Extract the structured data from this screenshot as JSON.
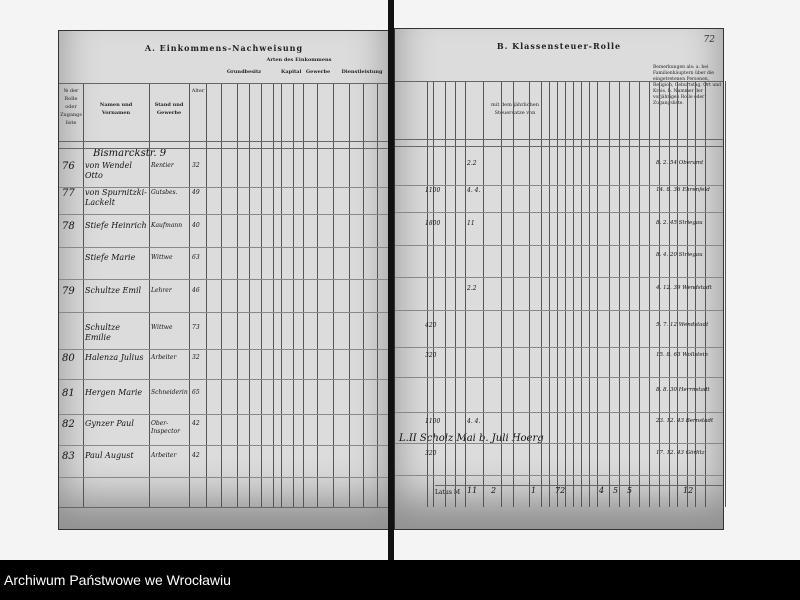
{
  "left_page": {
    "section_title": "A. Einkommens-Nachweisung",
    "group_title": "Arten des Einkommens",
    "subgroups": [
      "Grundbesitz",
      "Kapital",
      "Gewerbe",
      "Dienstleistung"
    ],
    "col_no": "№ der Rolle oder Zugangsliste",
    "col_name": "Namen und Vornamen",
    "col_stand": "Stand und Gewerbe",
    "col_age": "Alter"
  },
  "right_page": {
    "section_title": "B. Klassensteuer-Rolle",
    "page_number": "72",
    "col_remarks": "Bemerkungen als: a. bei Familienhäuptern über die eingetretenen Personen, Religion, Geburtstag, Ort und Kreis. b. Nummer der vorjährigen Rolle oder Zugangsliste.",
    "col_tax": "mit dem jährlichen Steuersatze von",
    "totals_label": "Latus M",
    "totals": [
      "11",
      "2",
      "1",
      "72",
      "4",
      "5",
      "5",
      "12"
    ],
    "note_line": "L.II Scholz Mai b. Juli Hoerg"
  },
  "street_heading": "Bismarckstr. 9",
  "rows": [
    {
      "no": "76",
      "name": "von Wendel Otto",
      "stand": "Rentier",
      "age": "32",
      "income": "",
      "class": "2.2",
      "remarks": "8. 2. 54 Oberamt"
    },
    {
      "no": "77",
      "name": "von Spurnitzki-Lackelt",
      "stand": "Gutsbes.",
      "age": "49",
      "income": "1100",
      "class": "4. 4.",
      "remarks": "14. 8. 36 Ehrenfeld"
    },
    {
      "no": "78",
      "name": "Stiefe Heinrich",
      "stand": "Kaufmann",
      "age": "40",
      "income": "1800",
      "class": "11",
      "remarks": "8. 2. 45 Striegau"
    },
    {
      "no": "",
      "name": "Stiefe Marie",
      "stand": "Wittwe",
      "age": "63",
      "income": "",
      "class": "",
      "remarks": "8. 4. 20 Striegau"
    },
    {
      "no": "79",
      "name": "Schultze Emil",
      "stand": "Lehrer",
      "age": "46",
      "income": "",
      "class": "2.2",
      "remarks": "4. 12. 39 Wendstadt"
    },
    {
      "no": "",
      "name": "Schultze Emilie",
      "stand": "Wittwe",
      "age": "73",
      "income": "420",
      "class": "",
      "remarks": "5. 7. 12 Wendstadt"
    },
    {
      "no": "80",
      "name": "Halenza Julius",
      "stand": "Arbeiter",
      "age": "32",
      "income": "320",
      "class": "",
      "remarks": "15. 8. 63 Wollstein"
    },
    {
      "no": "81",
      "name": "Hergen Marie",
      "stand": "Schneiderin",
      "age": "65",
      "income": "",
      "class": "",
      "remarks": "8. 8. 30 Herrnstadt"
    },
    {
      "no": "82",
      "name": "Gynzer Paul",
      "stand": "Ober-Inspector",
      "age": "42",
      "income": "1100",
      "class": "4. 4.",
      "remarks": "23. 12. 43 Bernstadt"
    },
    {
      "no": "83",
      "name": "Paul August",
      "stand": "Arbeiter",
      "age": "42",
      "income": "320",
      "class": "",
      "remarks": "17. 12. 43 Görlitz"
    }
  ],
  "footer": {
    "archive": "Archiwum Państwowe we Wrocławiu"
  }
}
